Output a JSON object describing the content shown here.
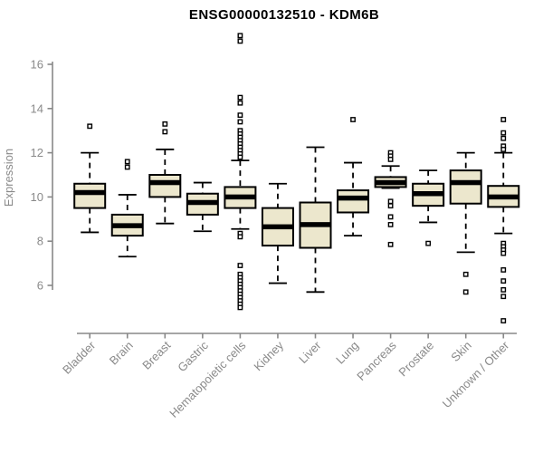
{
  "title": "ENSG00000132510 - KDM6B",
  "colors": {
    "box_fill": "#ece7cd",
    "box_stroke": "#000000",
    "median": "#000000",
    "axis_line": "#888888",
    "axis_text": "#8a8a8a",
    "background": "#ffffff",
    "outlier_fill": "#ffffff"
  },
  "chart_data": {
    "type": "boxplot",
    "title": "ENSG00000132510 - KDM6B",
    "xlabel": "",
    "ylabel": "Expression",
    "ylim": [
      4.2,
      17.5
    ],
    "yticks": [
      6,
      8,
      10,
      12,
      14,
      16
    ],
    "grid": false,
    "legend": false,
    "categories": [
      "Bladder",
      "Brain",
      "Breast",
      "Gastric",
      "Hematopoietic cells",
      "Kidney",
      "Liver",
      "Lung",
      "Pancreas",
      "Prostate",
      "Skin",
      "Unknown / Other"
    ],
    "series": [
      {
        "name": "Bladder",
        "whisker_low": 8.4,
        "q1": 9.5,
        "median": 10.2,
        "q3": 10.6,
        "whisker_high": 12.0,
        "outliers": [
          13.2
        ]
      },
      {
        "name": "Brain",
        "whisker_low": 7.3,
        "q1": 8.25,
        "median": 8.7,
        "q3": 9.2,
        "whisker_high": 10.1,
        "outliers": [
          11.6,
          11.35
        ]
      },
      {
        "name": "Breast",
        "whisker_low": 8.8,
        "q1": 10.0,
        "median": 10.65,
        "q3": 11.0,
        "whisker_high": 12.15,
        "outliers": [
          13.3,
          12.95
        ]
      },
      {
        "name": "Gastric",
        "whisker_low": 8.45,
        "q1": 9.2,
        "median": 9.75,
        "q3": 10.15,
        "whisker_high": 10.65,
        "outliers": []
      },
      {
        "name": "Hematopoietic cells",
        "whisker_low": 8.55,
        "q1": 9.5,
        "median": 10.0,
        "q3": 10.45,
        "whisker_high": 11.65,
        "outliers": [
          17.3,
          17.05,
          14.5,
          14.25,
          13.7,
          13.4,
          13.0,
          12.85,
          12.7,
          12.55,
          12.4,
          12.25,
          12.1,
          11.95,
          11.8,
          8.35,
          8.2,
          6.9,
          6.5,
          6.35,
          6.2,
          6.05,
          5.9,
          5.75,
          5.6,
          5.45,
          5.3,
          5.15,
          5.0
        ]
      },
      {
        "name": "Kidney",
        "whisker_low": 6.1,
        "q1": 7.8,
        "median": 8.65,
        "q3": 9.5,
        "whisker_high": 10.6,
        "outliers": []
      },
      {
        "name": "Liver",
        "whisker_low": 5.7,
        "q1": 7.7,
        "median": 8.75,
        "q3": 9.75,
        "whisker_high": 12.25,
        "outliers": []
      },
      {
        "name": "Lung",
        "whisker_low": 8.25,
        "q1": 9.3,
        "median": 9.95,
        "q3": 10.3,
        "whisker_high": 11.55,
        "outliers": [
          13.5
        ]
      },
      {
        "name": "Pancreas",
        "whisker_low": 10.4,
        "q1": 10.45,
        "median": 10.65,
        "q3": 10.9,
        "whisker_high": 11.4,
        "outliers": [
          12.0,
          11.85,
          11.7,
          9.8,
          9.6,
          9.1,
          8.75,
          7.85
        ]
      },
      {
        "name": "Prostate",
        "whisker_low": 8.85,
        "q1": 9.6,
        "median": 10.15,
        "q3": 10.6,
        "whisker_high": 11.2,
        "outliers": [
          7.9
        ]
      },
      {
        "name": "Skin",
        "whisker_low": 7.5,
        "q1": 9.7,
        "median": 10.65,
        "q3": 11.2,
        "whisker_high": 12.0,
        "outliers": [
          6.5,
          5.7
        ]
      },
      {
        "name": "Unknown / Other",
        "whisker_low": 8.35,
        "q1": 9.55,
        "median": 10.0,
        "q3": 10.5,
        "whisker_high": 12.0,
        "outliers": [
          13.5,
          12.9,
          12.65,
          12.3,
          12.15,
          7.9,
          7.75,
          7.6,
          7.45,
          6.7,
          6.2,
          5.8,
          5.5,
          4.4
        ]
      }
    ]
  }
}
